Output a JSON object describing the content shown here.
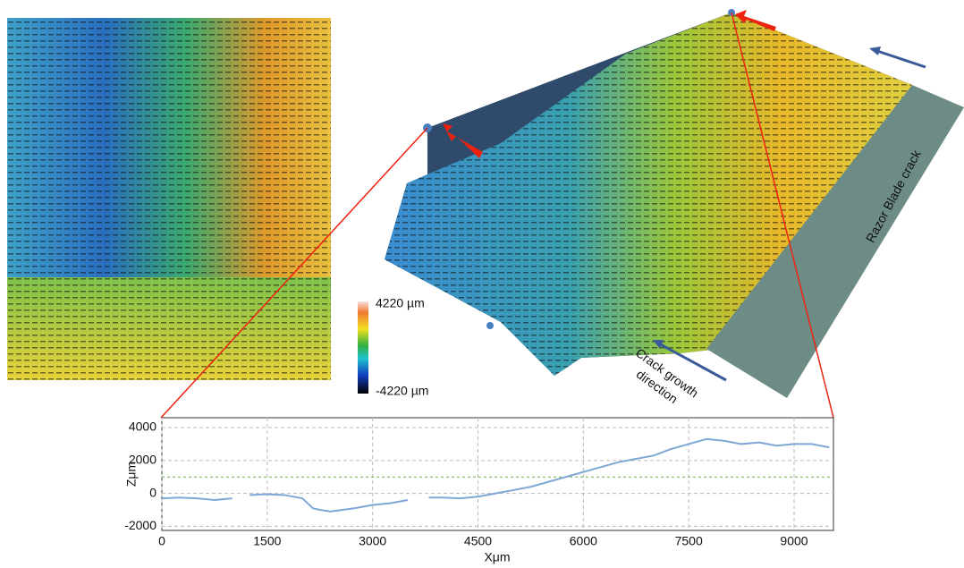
{
  "chart_data": {
    "type": "line",
    "x_label": "Xμm",
    "y_label": "Zμm",
    "x": [
      0,
      250,
      500,
      750,
      1000,
      1150,
      1250,
      1500,
      1750,
      2000,
      2150,
      2250,
      2400,
      2750,
      3000,
      3250,
      3500,
      3700,
      3800,
      4000,
      4250,
      4500,
      4750,
      5000,
      5250,
      5500,
      5750,
      6000,
      6250,
      6500,
      6750,
      7000,
      7250,
      7500,
      7750,
      8000,
      8250,
      8500,
      8750,
      9000,
      9250,
      9500
    ],
    "series": [
      {
        "color": "#7fa7d6",
        "values": [
          -300,
          -250,
          -300,
          -400,
          -300,
          null,
          -100,
          -50,
          -100,
          -300,
          -900,
          -1000,
          -1100,
          -900,
          -700,
          -600,
          -400,
          null,
          -250,
          -250,
          -300,
          -200,
          0,
          200,
          400,
          700,
          1000,
          1300,
          1600,
          1900,
          2100,
          2300,
          2700,
          3000,
          3300,
          3200,
          3000,
          3100,
          2900,
          3000,
          3000,
          2800
        ]
      }
    ],
    "xlim": [
      0,
      9560
    ],
    "xticks": [
      0,
      1500,
      3000,
      4500,
      6000,
      7500,
      9000
    ],
    "ylim": [
      -2250,
      4600
    ],
    "yticks": [
      -2000,
      0,
      2000,
      4000
    ],
    "reference_line": 1000,
    "grid": true
  },
  "colorbar": {
    "max_label": "4220 µm",
    "min_label": "-4220 µm"
  },
  "annotations": {
    "razor": "Razor Blade crack",
    "crack_growth": [
      "Crack growth",
      "direction"
    ]
  }
}
